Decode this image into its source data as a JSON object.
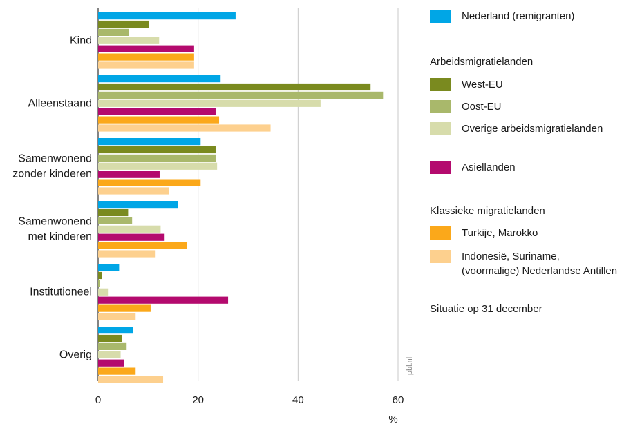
{
  "chart_data": {
    "type": "bar",
    "orientation": "horizontal",
    "categories": [
      "Kind",
      "Alleenstaand",
      "Samenwonend\nzonder kinderen",
      "Samenwonend\nmet kinderen",
      "Institutioneel",
      "Overig"
    ],
    "series": [
      {
        "name": "Nederland (remigranten)",
        "color": "#00a6e6",
        "values": [
          27.5,
          24.5,
          20.5,
          16,
          4.2,
          7
        ]
      },
      {
        "name": "West-EU",
        "color": "#7a8a1f",
        "values": [
          10.2,
          54.5,
          23.5,
          6,
          0.7,
          4.8
        ]
      },
      {
        "name": "Oost-EU",
        "color": "#a9b86b",
        "values": [
          6.2,
          57,
          23.5,
          6.8,
          0.4,
          5.7
        ]
      },
      {
        "name": "Overige arbeidsmigratielanden",
        "color": "#d7dcab",
        "values": [
          12.2,
          44.5,
          23.8,
          12.5,
          2.1,
          4.5
        ]
      },
      {
        "name": "Asiellanden",
        "color": "#b40a6e",
        "values": [
          19.2,
          23.5,
          12.3,
          13.3,
          26,
          5.2
        ]
      },
      {
        "name": "Turkije, Marokko",
        "color": "#fba81a",
        "values": [
          19.2,
          24.2,
          20.5,
          17.8,
          10.5,
          7.5
        ]
      },
      {
        "name": "Indonesië, Suriname,\n(voormalige) Nederlandse Antillen",
        "color": "#fdd08e",
        "values": [
          19.2,
          34.5,
          14.1,
          11.5,
          7.5,
          13
        ]
      }
    ],
    "xlim": [
      0,
      60
    ],
    "xticks": [
      0,
      20,
      40,
      60
    ],
    "xlabel": "%",
    "grid": true,
    "legend_position": "right"
  },
  "legend": {
    "group_labour": "Arbeidsmigratielanden",
    "group_classic": "Klassieke migratielanden",
    "note": "Situatie op 31 december"
  },
  "watermark": "pbl.nl"
}
